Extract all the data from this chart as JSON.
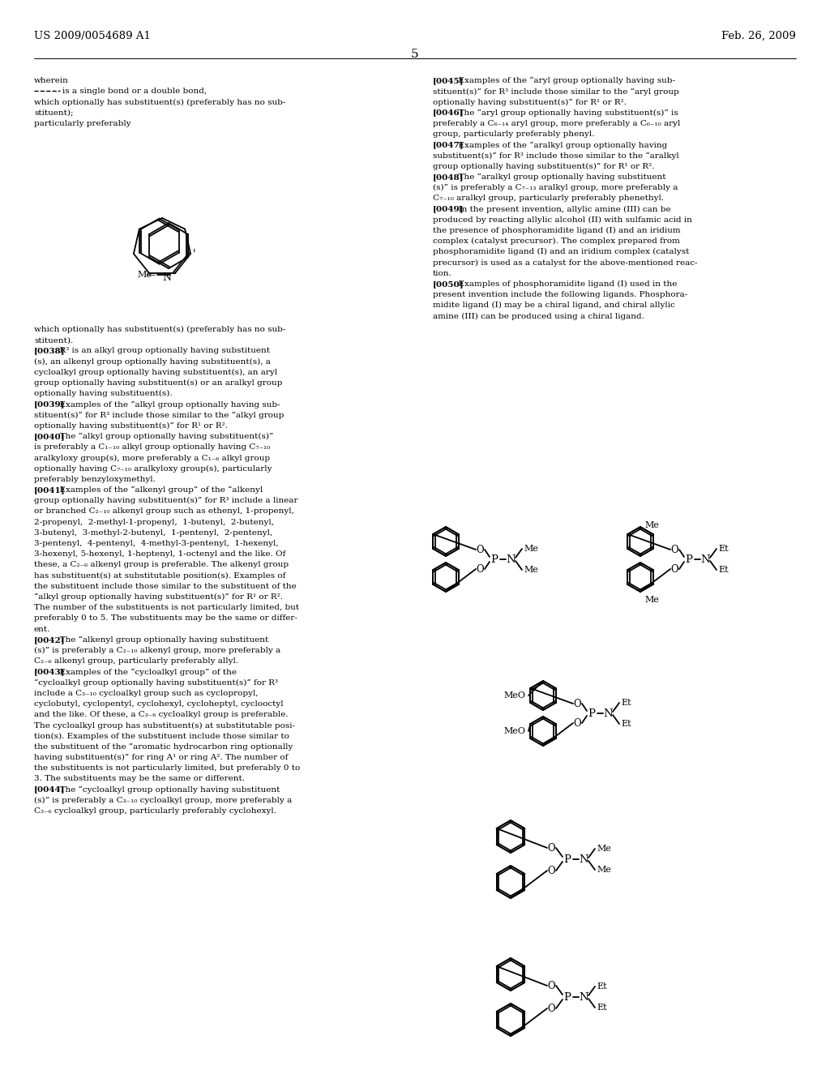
{
  "background_color": "#ffffff",
  "header_left": "US 2009/0054689 A1",
  "header_right": "Feb. 26, 2009",
  "page_number": "5"
}
